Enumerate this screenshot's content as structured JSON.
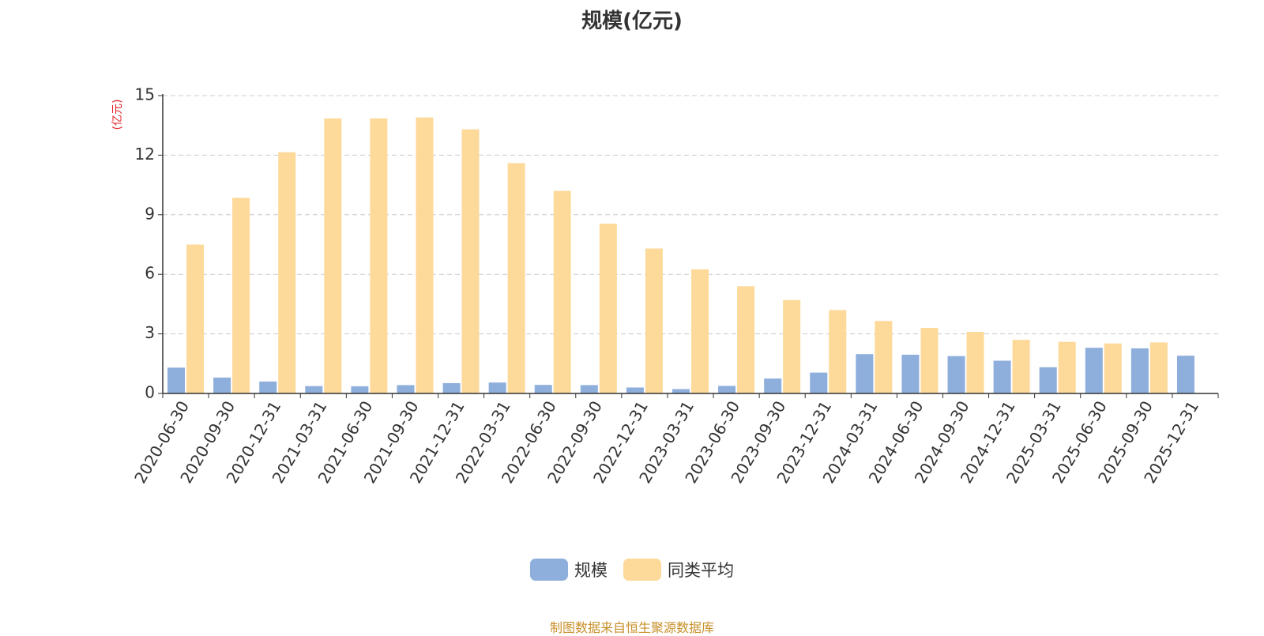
{
  "chart_data": {
    "type": "bar",
    "title": "规模(亿元)",
    "ylabel": "(亿元)",
    "xlabel": "",
    "ylim": [
      0,
      15
    ],
    "yticks": [
      0,
      3,
      6,
      9,
      12,
      15
    ],
    "grid": true,
    "legend_position": "bottom",
    "categories": [
      "2020-06-30",
      "2020-09-30",
      "2020-12-31",
      "2021-03-31",
      "2021-06-30",
      "2021-09-30",
      "2021-12-31",
      "2022-03-31",
      "2022-06-30",
      "2022-09-30",
      "2022-12-31",
      "2023-03-31",
      "2023-06-30",
      "2023-09-30",
      "2023-12-31",
      "2024-03-31",
      "2024-06-30",
      "2024-09-30",
      "2024-12-31",
      "2025-03-31",
      "2025-06-30",
      "2025-09-30",
      "2025-12-31"
    ],
    "series": [
      {
        "name": "规模",
        "color": "#8eaedc",
        "values": [
          1.3,
          0.8,
          0.6,
          0.37,
          0.36,
          0.42,
          0.52,
          0.55,
          0.43,
          0.42,
          0.3,
          0.22,
          0.38,
          0.75,
          1.05,
          1.98,
          1.95,
          1.88,
          1.65,
          1.32,
          2.3,
          2.27,
          1.9
        ]
      },
      {
        "name": "同类平均",
        "color": "#fdd99a",
        "values": [
          7.5,
          9.85,
          12.15,
          13.85,
          13.85,
          13.9,
          13.3,
          11.6,
          10.2,
          8.55,
          7.3,
          6.25,
          5.4,
          4.7,
          4.2,
          3.65,
          3.3,
          3.1,
          2.7,
          2.6,
          2.52,
          2.57,
          null
        ]
      }
    ]
  },
  "source_note": "制图数据来自恒生聚源数据库"
}
